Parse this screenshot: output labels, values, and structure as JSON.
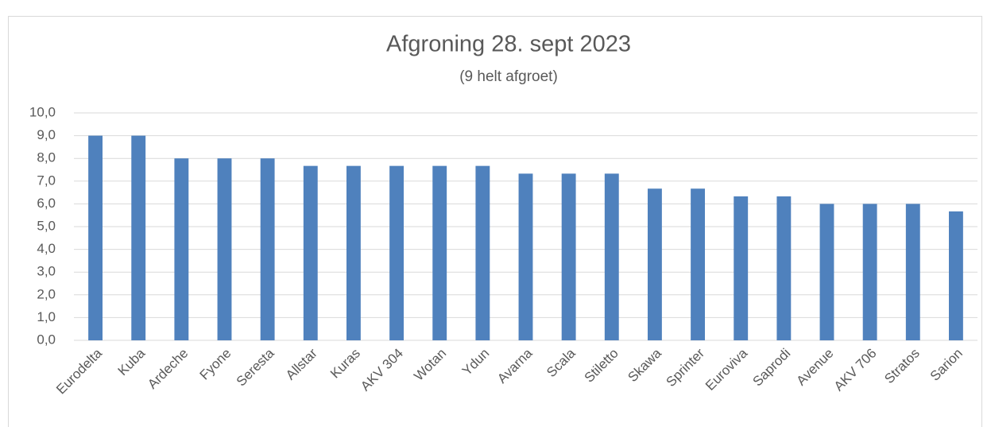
{
  "chart_data": {
    "type": "bar",
    "title": "Afgroning 28. sept 2023",
    "subtitle": "(9 helt afgroet)",
    "categories": [
      "Eurodelta",
      "Kuba",
      "Ardeche",
      "Fyone",
      "Seresta",
      "Allstar",
      "Kuras",
      "AKV 304",
      "Wotan",
      "Ydun",
      "Avarna",
      "Scala",
      "Stiletto",
      "Skawa",
      "Sprinter",
      "Euroviva",
      "Saprodi",
      "Avenue",
      "AKV 706",
      "Stratos",
      "Sarion"
    ],
    "values": [
      9,
      9,
      8,
      8,
      8,
      7.67,
      7.67,
      7.67,
      7.67,
      7.67,
      7.33,
      7.33,
      7.33,
      6.67,
      6.67,
      6.33,
      6.33,
      6,
      6,
      6,
      5.67
    ],
    "color": "#4f81bd",
    "ylim": [
      0,
      10
    ],
    "yticks": [
      {
        "value": 0,
        "label": "0,0"
      },
      {
        "value": 1,
        "label": "1,0"
      },
      {
        "value": 2,
        "label": "2,0"
      },
      {
        "value": 3,
        "label": "3,0"
      },
      {
        "value": 4,
        "label": "4,0"
      },
      {
        "value": 5,
        "label": "5,0"
      },
      {
        "value": 6,
        "label": "6,0"
      },
      {
        "value": 7,
        "label": "7,0"
      },
      {
        "value": 8,
        "label": "8,0"
      },
      {
        "value": 9,
        "label": "9,0"
      },
      {
        "value": 10,
        "label": "10,0"
      }
    ],
    "grid": true
  }
}
